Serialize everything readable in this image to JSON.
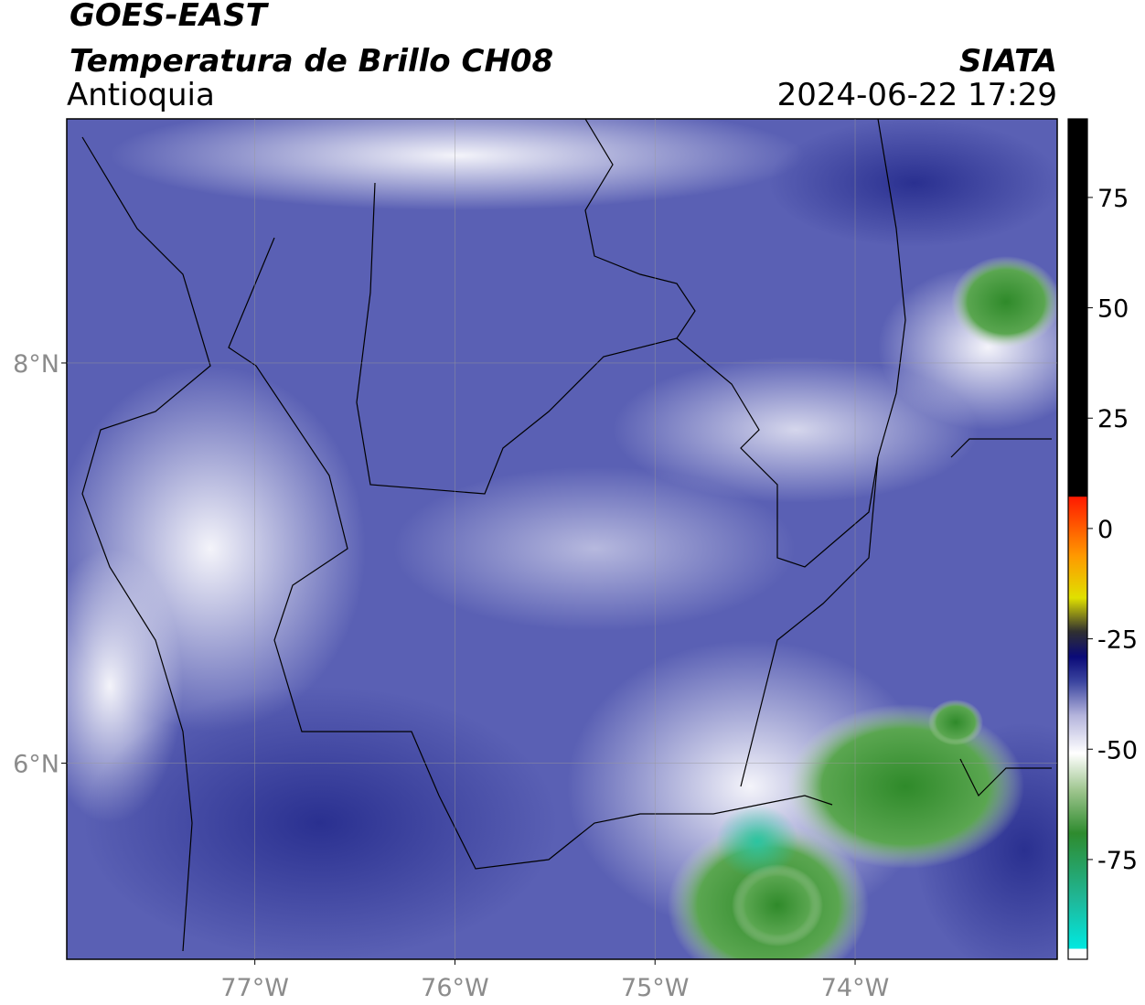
{
  "header": {
    "satellite": "GOES-EAST",
    "product": "Temperatura de Brillo CH08",
    "region": "Antioquia",
    "source": "SIATA",
    "datetime": "2024-06-22 17:29"
  },
  "map": {
    "xlim": [
      -77.94,
      -72.99
    ],
    "ylim": [
      5.02,
      9.22
    ],
    "xticks": [
      {
        "value": -77,
        "label": "77°W"
      },
      {
        "value": -76,
        "label": "76°W"
      },
      {
        "value": -75,
        "label": "75°W"
      },
      {
        "value": -74,
        "label": "74°W"
      }
    ],
    "yticks": [
      {
        "value": 8,
        "label": "8°N"
      },
      {
        "value": 6,
        "label": "6°N"
      }
    ],
    "grid": true
  },
  "colorbar": {
    "ylim": [
      -97.6,
      92.8
    ],
    "ticks": [
      75,
      50,
      25,
      0,
      -25,
      -50,
      -75
    ]
  }
}
